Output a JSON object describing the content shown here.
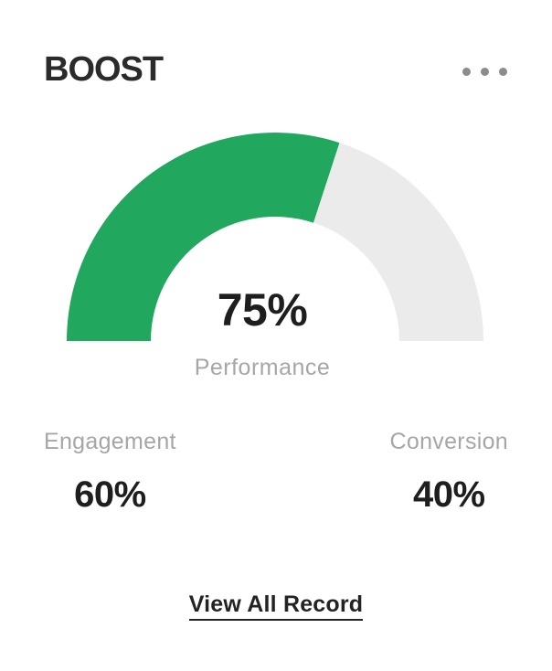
{
  "header": {
    "title": "BOOST"
  },
  "chart_data": {
    "type": "gauge",
    "shape": "semicircle-donut",
    "title": "BOOST",
    "center_value": "75%",
    "center_label": "Performance",
    "total": 100,
    "start_angle_deg": 180,
    "end_angle_deg": 0,
    "outer_radius_px": 228,
    "inner_radius_px": 136,
    "segments": [
      {
        "name": "Engagement",
        "value": 60,
        "color": "#21A75E"
      },
      {
        "name": "Conversion",
        "value": 40,
        "color": "#EBEBEB"
      }
    ]
  },
  "stats": [
    {
      "label": "Engagement",
      "value": "60%"
    },
    {
      "label": "Conversion",
      "value": "40%"
    }
  ],
  "footer": {
    "link_label": "View All Record"
  },
  "colors": {
    "accent_green": "#21A75E",
    "track_gray": "#EBEBEB",
    "text_dark": "#1E1E1E",
    "text_muted": "#A6A6A6",
    "dots_gray": "#8B8B8B"
  }
}
